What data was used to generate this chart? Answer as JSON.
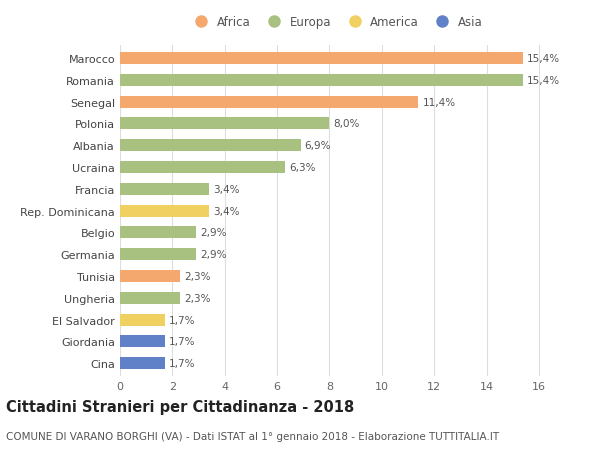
{
  "categories": [
    "Cina",
    "Giordania",
    "El Salvador",
    "Ungheria",
    "Tunisia",
    "Germania",
    "Belgio",
    "Rep. Dominicana",
    "Francia",
    "Ucraina",
    "Albania",
    "Polonia",
    "Senegal",
    "Romania",
    "Marocco"
  ],
  "values": [
    1.7,
    1.7,
    1.7,
    2.3,
    2.3,
    2.9,
    2.9,
    3.4,
    3.4,
    6.3,
    6.9,
    8.0,
    11.4,
    15.4,
    15.4
  ],
  "labels": [
    "1,7%",
    "1,7%",
    "1,7%",
    "2,3%",
    "2,3%",
    "2,9%",
    "2,9%",
    "3,4%",
    "3,4%",
    "6,3%",
    "6,9%",
    "8,0%",
    "11,4%",
    "15,4%",
    "15,4%"
  ],
  "continent": [
    "Asia",
    "Asia",
    "America",
    "Europa",
    "Africa",
    "Europa",
    "Europa",
    "America",
    "Europa",
    "Europa",
    "Europa",
    "Europa",
    "Africa",
    "Europa",
    "Africa"
  ],
  "colors": {
    "Africa": "#F5A86E",
    "Europa": "#A8C080",
    "America": "#F0D060",
    "Asia": "#6080C8"
  },
  "legend_order": [
    "Africa",
    "Europa",
    "America",
    "Asia"
  ],
  "title": "Cittadini Stranieri per Cittadinanza - 2018",
  "subtitle": "COMUNE DI VARANO BORGHI (VA) - Dati ISTAT al 1° gennaio 2018 - Elaborazione TUTTITALIA.IT",
  "xlim": [
    0,
    16.5
  ],
  "xticks": [
    0,
    2,
    4,
    6,
    8,
    10,
    12,
    14,
    16
  ],
  "background_color": "#ffffff",
  "grid_color": "#dddddd",
  "bar_height": 0.55,
  "title_fontsize": 10.5,
  "subtitle_fontsize": 7.5,
  "label_fontsize": 7.5,
  "tick_fontsize": 8,
  "legend_fontsize": 8.5
}
